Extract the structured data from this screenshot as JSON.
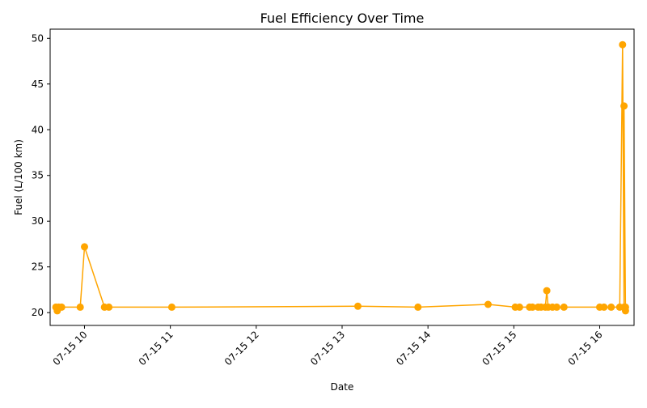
{
  "chart_data": {
    "type": "line",
    "title": "Fuel Efficiency Over Time",
    "xlabel": "Date",
    "ylabel": "Fuel (L/100 km)",
    "x_ticks": [
      "07-15 10",
      "07-15 11",
      "07-15 12",
      "07-15 13",
      "07-15 14",
      "07-15 15",
      "07-15 16"
    ],
    "y_ticks": [
      20,
      25,
      30,
      35,
      40,
      45,
      50
    ],
    "xlim": [
      "2025-07-15 09:36",
      "2025-07-15 16:24"
    ],
    "ylim": [
      18.6,
      51.0
    ],
    "grid": false,
    "series_color": "#ffa500",
    "series": [
      {
        "x": [
          "2025-07-15 09:40",
          "2025-07-15 09:41",
          "2025-07-15 09:42",
          "2025-07-15 09:44",
          "2025-07-15 09:57",
          "2025-07-15 10:00",
          "2025-07-15 10:14",
          "2025-07-15 10:17",
          "2025-07-15 11:01",
          "2025-07-15 13:11",
          "2025-07-15 13:53",
          "2025-07-15 14:42",
          "2025-07-15 15:01",
          "2025-07-15 15:04",
          "2025-07-15 15:11",
          "2025-07-15 15:13",
          "2025-07-15 15:17",
          "2025-07-15 15:19",
          "2025-07-15 15:22",
          "2025-07-15 15:23",
          "2025-07-15 15:24",
          "2025-07-15 15:27",
          "2025-07-15 15:30",
          "2025-07-15 15:35",
          "2025-07-15 16:00",
          "2025-07-15 16:03",
          "2025-07-15 16:08",
          "2025-07-15 16:14",
          "2025-07-15 16:16",
          "2025-07-15 16:17",
          "2025-07-15 16:17",
          "2025-07-15 16:18",
          "2025-07-15 16:18"
        ],
        "y": [
          20.6,
          20.2,
          20.6,
          20.6,
          20.6,
          27.2,
          20.6,
          20.6,
          20.6,
          20.7,
          20.6,
          20.9,
          20.6,
          20.6,
          20.6,
          20.6,
          20.6,
          20.6,
          20.6,
          22.4,
          20.6,
          20.6,
          20.6,
          20.6,
          20.6,
          20.6,
          20.6,
          20.6,
          49.3,
          20.6,
          42.6,
          20.2,
          20.6
        ]
      }
    ]
  }
}
